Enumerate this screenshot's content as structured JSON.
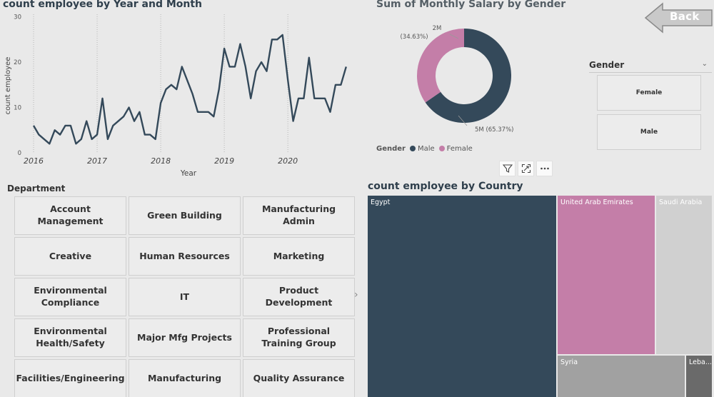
{
  "line_chart": {
    "title": "count employee by Year and Month"
  },
  "donut_chart": {
    "title": "Sum of Monthly Salary by Gender",
    "label_female_value": "2M",
    "label_female_pct": "(34.63%)",
    "label_male": "5M (65.37%)",
    "legend_title": "Gender",
    "legend_items": [
      "Male",
      "Female"
    ]
  },
  "back_button": {
    "label": "Back"
  },
  "gender_slicer": {
    "header": "Gender",
    "options": [
      "Female",
      "Male"
    ]
  },
  "department": {
    "title": "Department",
    "items": [
      "Account Management",
      "Green Building",
      "Manufacturing Admin",
      "Creative",
      "Human Resources",
      "Marketing",
      "Environmental Compliance",
      "IT",
      "Product Development",
      "Environmental Health/Safety",
      "Major Mfg Projects",
      "Professional Training Group",
      "Facilities/Engineering",
      "Manufacturing",
      "Quality Assurance"
    ]
  },
  "treemap": {
    "title": "count employee by Country",
    "cells": [
      "Egypt",
      "United Arab Emirates",
      "Saudi Arabia",
      "Syria",
      "Leba..."
    ]
  },
  "colors": {
    "male": "#34495a",
    "female": "#c47ea8",
    "line": "#34495a",
    "saudi": "#d0d0d0",
    "syria": "#a1a1a1",
    "lebanon": "#6a6a6a"
  },
  "chart_data": [
    {
      "type": "line",
      "title": "count employee by Year and Month",
      "xlabel": "Year",
      "ylabel": "count employee",
      "x_ticks": [
        "2016",
        "2017",
        "2018",
        "2019",
        "2020"
      ],
      "y_ticks": [
        0,
        10,
        20,
        30
      ],
      "ylim": [
        0,
        30
      ],
      "x_start": "2016-01",
      "values": [
        6,
        4,
        3,
        2,
        5,
        4,
        6,
        6,
        2,
        3,
        7,
        3,
        4,
        12,
        3,
        6,
        7,
        8,
        10,
        7,
        9,
        4,
        4,
        3,
        11,
        14,
        15,
        14,
        19,
        16,
        13,
        9,
        9,
        9,
        8,
        14,
        23,
        19,
        19,
        24,
        19,
        12,
        18,
        20,
        18,
        25,
        25,
        26,
        16,
        7,
        12,
        12,
        21,
        12,
        12,
        12,
        9,
        15,
        15,
        19
      ]
    },
    {
      "type": "pie",
      "title": "Sum of Monthly Salary by Gender",
      "categories": [
        "Male",
        "Female"
      ],
      "values": [
        65.37,
        34.63
      ],
      "legend": "bottom"
    },
    {
      "type": "treemap",
      "title": "count employee by Country",
      "categories": [
        "Egypt",
        "United Arab Emirates",
        "Saudi Arabia",
        "Syria",
        "Leba..."
      ]
    }
  ]
}
